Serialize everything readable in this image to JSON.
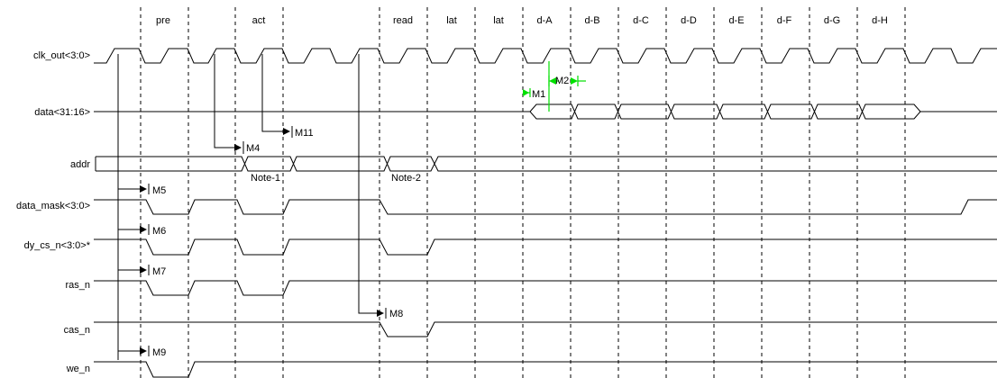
{
  "cycle_labels": [
    "pre",
    "act",
    "read",
    "lat",
    "lat",
    "d-A",
    "d-B",
    "d-C",
    "d-D",
    "d-E",
    "d-F",
    "d-G",
    "d-H"
  ],
  "signals": {
    "clk": "clk_out<3:0>",
    "data": "data<31:16>",
    "addr": "addr",
    "data_mask": "data_mask<3:0>",
    "dy_cs_n": "dy_cs_n<3:0>*",
    "ras_n": "ras_n",
    "cas_n": "cas_n",
    "we_n": "we_n"
  },
  "markers": {
    "m1": "M1",
    "m2": "M2",
    "m4": "M4",
    "m5": "M5",
    "m6": "M6",
    "m7": "M7",
    "m8": "M8",
    "m9": "M9",
    "m11": "M11"
  },
  "notes": {
    "note1": "Note-1",
    "note2": "Note-2"
  },
  "colors": {
    "line": "#000000",
    "measure": "#00e000"
  }
}
